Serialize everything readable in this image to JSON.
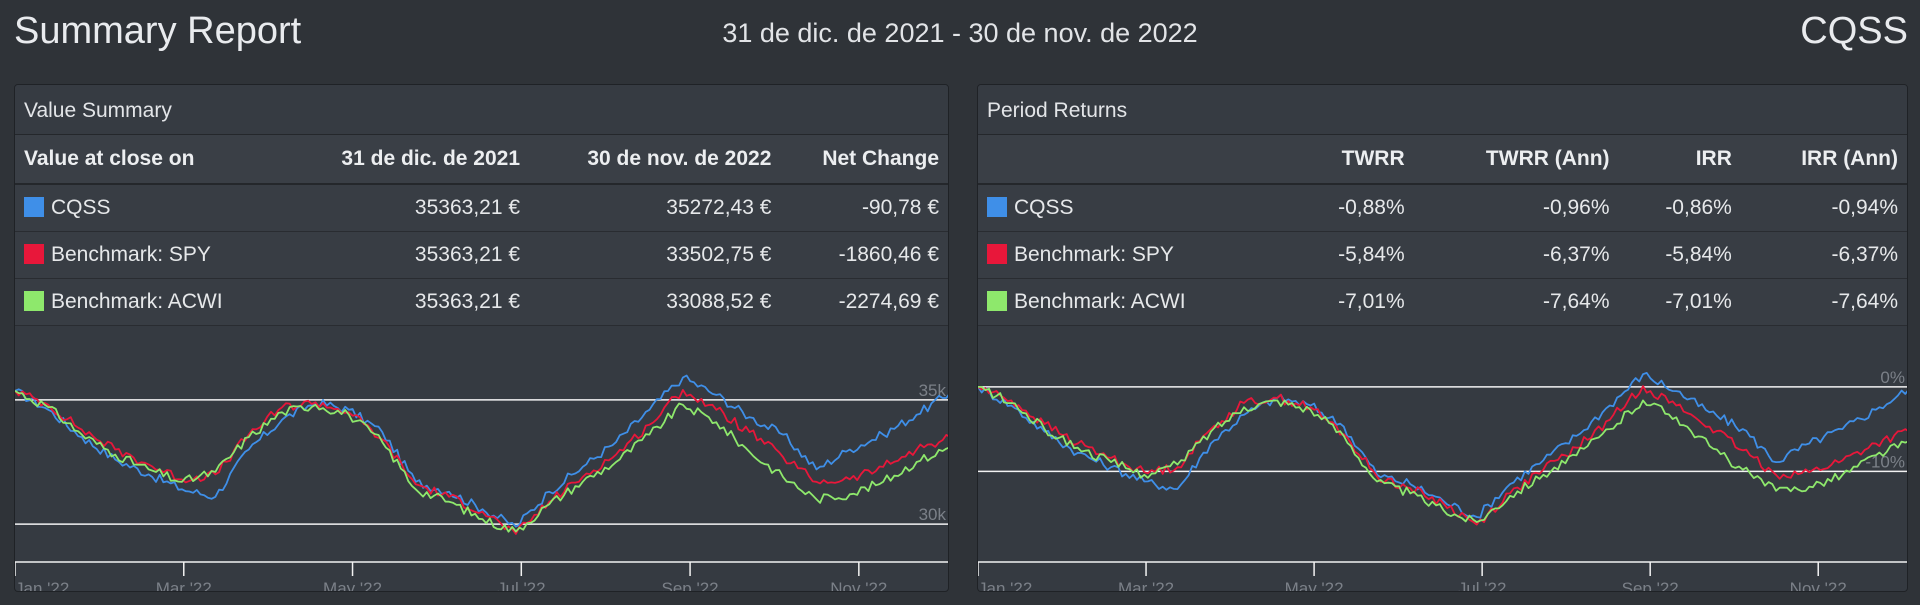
{
  "header": {
    "title": "Summary Report",
    "period": "31 de dic. de 2021 - 30 de nov. de 2022",
    "account": "CQSS"
  },
  "colors": {
    "cqss": "#3f8fe8",
    "spy": "#e8173a",
    "acwi": "#8ee86c"
  },
  "value_summary": {
    "title": "Value Summary",
    "columns": [
      "Value at close on",
      "31 de dic. de 2021",
      "30 de nov. de 2022",
      "Net Change"
    ],
    "rows": [
      {
        "name": "CQSS",
        "color": "#3f8fe8",
        "start": "35363,21 €",
        "end": "35272,43 €",
        "change": "-90,78 €"
      },
      {
        "name": "Benchmark: SPY",
        "color": "#e8173a",
        "start": "35363,21 €",
        "end": "33502,75 €",
        "change": "-1860,46 €"
      },
      {
        "name": "Benchmark: ACWI",
        "color": "#8ee86c",
        "start": "35363,21 €",
        "end": "33088,52 €",
        "change": "-2274,69 €"
      }
    ]
  },
  "period_returns": {
    "title": "Period Returns",
    "columns": [
      "",
      "TWRR",
      "TWRR (Ann)",
      "IRR",
      "IRR (Ann)"
    ],
    "rows": [
      {
        "name": "CQSS",
        "color": "#3f8fe8",
        "twrr": "-0,88%",
        "twrr_ann": "-0,96%",
        "irr": "-0,86%",
        "irr_ann": "-0,94%"
      },
      {
        "name": "Benchmark: SPY",
        "color": "#e8173a",
        "twrr": "-5,84%",
        "twrr_ann": "-6,37%",
        "irr": "-5,84%",
        "irr_ann": "-6,37%"
      },
      {
        "name": "Benchmark: ACWI",
        "color": "#8ee86c",
        "twrr": "-7,01%",
        "twrr_ann": "-7,64%",
        "irr": "-7,01%",
        "irr_ann": "-7,64%"
      }
    ]
  },
  "chart_data": [
    {
      "type": "line",
      "x_ticks": [
        "Jan '22",
        "Mar '22",
        "May '22",
        "Jul '22",
        "Sep '22",
        "Nov '22"
      ],
      "y_ticks": [
        {
          "value": 35000,
          "label": "35k"
        },
        {
          "value": 30000,
          "label": "30k"
        }
      ],
      "ylim": [
        29400,
        36200
      ],
      "grid": true,
      "series": [
        {
          "name": "CQSS",
          "color": "#3f8fe8",
          "values": [
            35363,
            34600,
            33500,
            32600,
            32000,
            31400,
            31100,
            33000,
            34200,
            34900,
            34600,
            33700,
            31700,
            31300,
            30600,
            29900,
            31300,
            32300,
            33300,
            34600,
            35900,
            35200,
            34300,
            33600,
            32200,
            33000,
            33600,
            34400,
            35272
          ]
        },
        {
          "name": "Benchmark: SPY",
          "color": "#e8173a",
          "values": [
            35363,
            34800,
            33800,
            33000,
            32400,
            31800,
            32000,
            33600,
            34700,
            34900,
            34500,
            33400,
            31600,
            31100,
            30500,
            29600,
            30900,
            31900,
            32800,
            34000,
            35400,
            34600,
            33700,
            32700,
            31700,
            31800,
            32300,
            33000,
            33503
          ]
        },
        {
          "name": "Benchmark: ACWI",
          "color": "#8ee86c",
          "values": [
            35363,
            34700,
            33600,
            32800,
            32200,
            31700,
            32100,
            33500,
            34500,
            34800,
            34400,
            33300,
            31400,
            30900,
            30200,
            29700,
            30800,
            31700,
            32500,
            33600,
            34800,
            34100,
            32900,
            31900,
            31000,
            31200,
            31700,
            32500,
            33089
          ]
        }
      ]
    },
    {
      "type": "line",
      "x_ticks": [
        "Jan '22",
        "Mar '22",
        "May '22",
        "Jul '22",
        "Sep '22",
        "Nov '22"
      ],
      "y_ticks": [
        {
          "value": 0,
          "label": "0%"
        },
        {
          "value": -10,
          "label": "-10%"
        }
      ],
      "ylim": [
        -18,
        2
      ],
      "grid": true,
      "series": [
        {
          "name": "CQSS",
          "color": "#3f8fe8",
          "values": [
            0,
            -2.2,
            -5.3,
            -7.8,
            -9.5,
            -11.2,
            -12.1,
            -6.7,
            -3.3,
            -1.3,
            -2.2,
            -4.7,
            -10.4,
            -11.5,
            -13.5,
            -15.4,
            -11.5,
            -8.7,
            -5.8,
            -2.2,
            1.5,
            -0.5,
            -3.0,
            -5.0,
            -8.9,
            -6.7,
            -5.0,
            -2.7,
            -0.26
          ]
        },
        {
          "name": "Benchmark: SPY",
          "color": "#e8173a",
          "values": [
            0,
            -1.6,
            -4.4,
            -6.7,
            -8.4,
            -10.1,
            -9.5,
            -5.0,
            -1.9,
            -1.3,
            -2.4,
            -5.6,
            -10.6,
            -12.0,
            -13.8,
            -16.3,
            -12.6,
            -9.8,
            -7.2,
            -3.9,
            0.1,
            -2.2,
            -4.7,
            -7.5,
            -10.4,
            -10.1,
            -8.7,
            -6.7,
            -5.26
          ]
        },
        {
          "name": "Benchmark: ACWI",
          "color": "#8ee86c",
          "values": [
            0,
            -1.9,
            -5.0,
            -7.2,
            -8.9,
            -10.4,
            -9.2,
            -5.3,
            -2.4,
            -1.6,
            -2.7,
            -5.8,
            -11.2,
            -12.6,
            -14.6,
            -16.0,
            -12.9,
            -10.4,
            -8.1,
            -5.0,
            -1.6,
            -3.6,
            -7.0,
            -9.8,
            -12.3,
            -11.8,
            -10.4,
            -8.1,
            -6.43
          ]
        }
      ]
    }
  ]
}
